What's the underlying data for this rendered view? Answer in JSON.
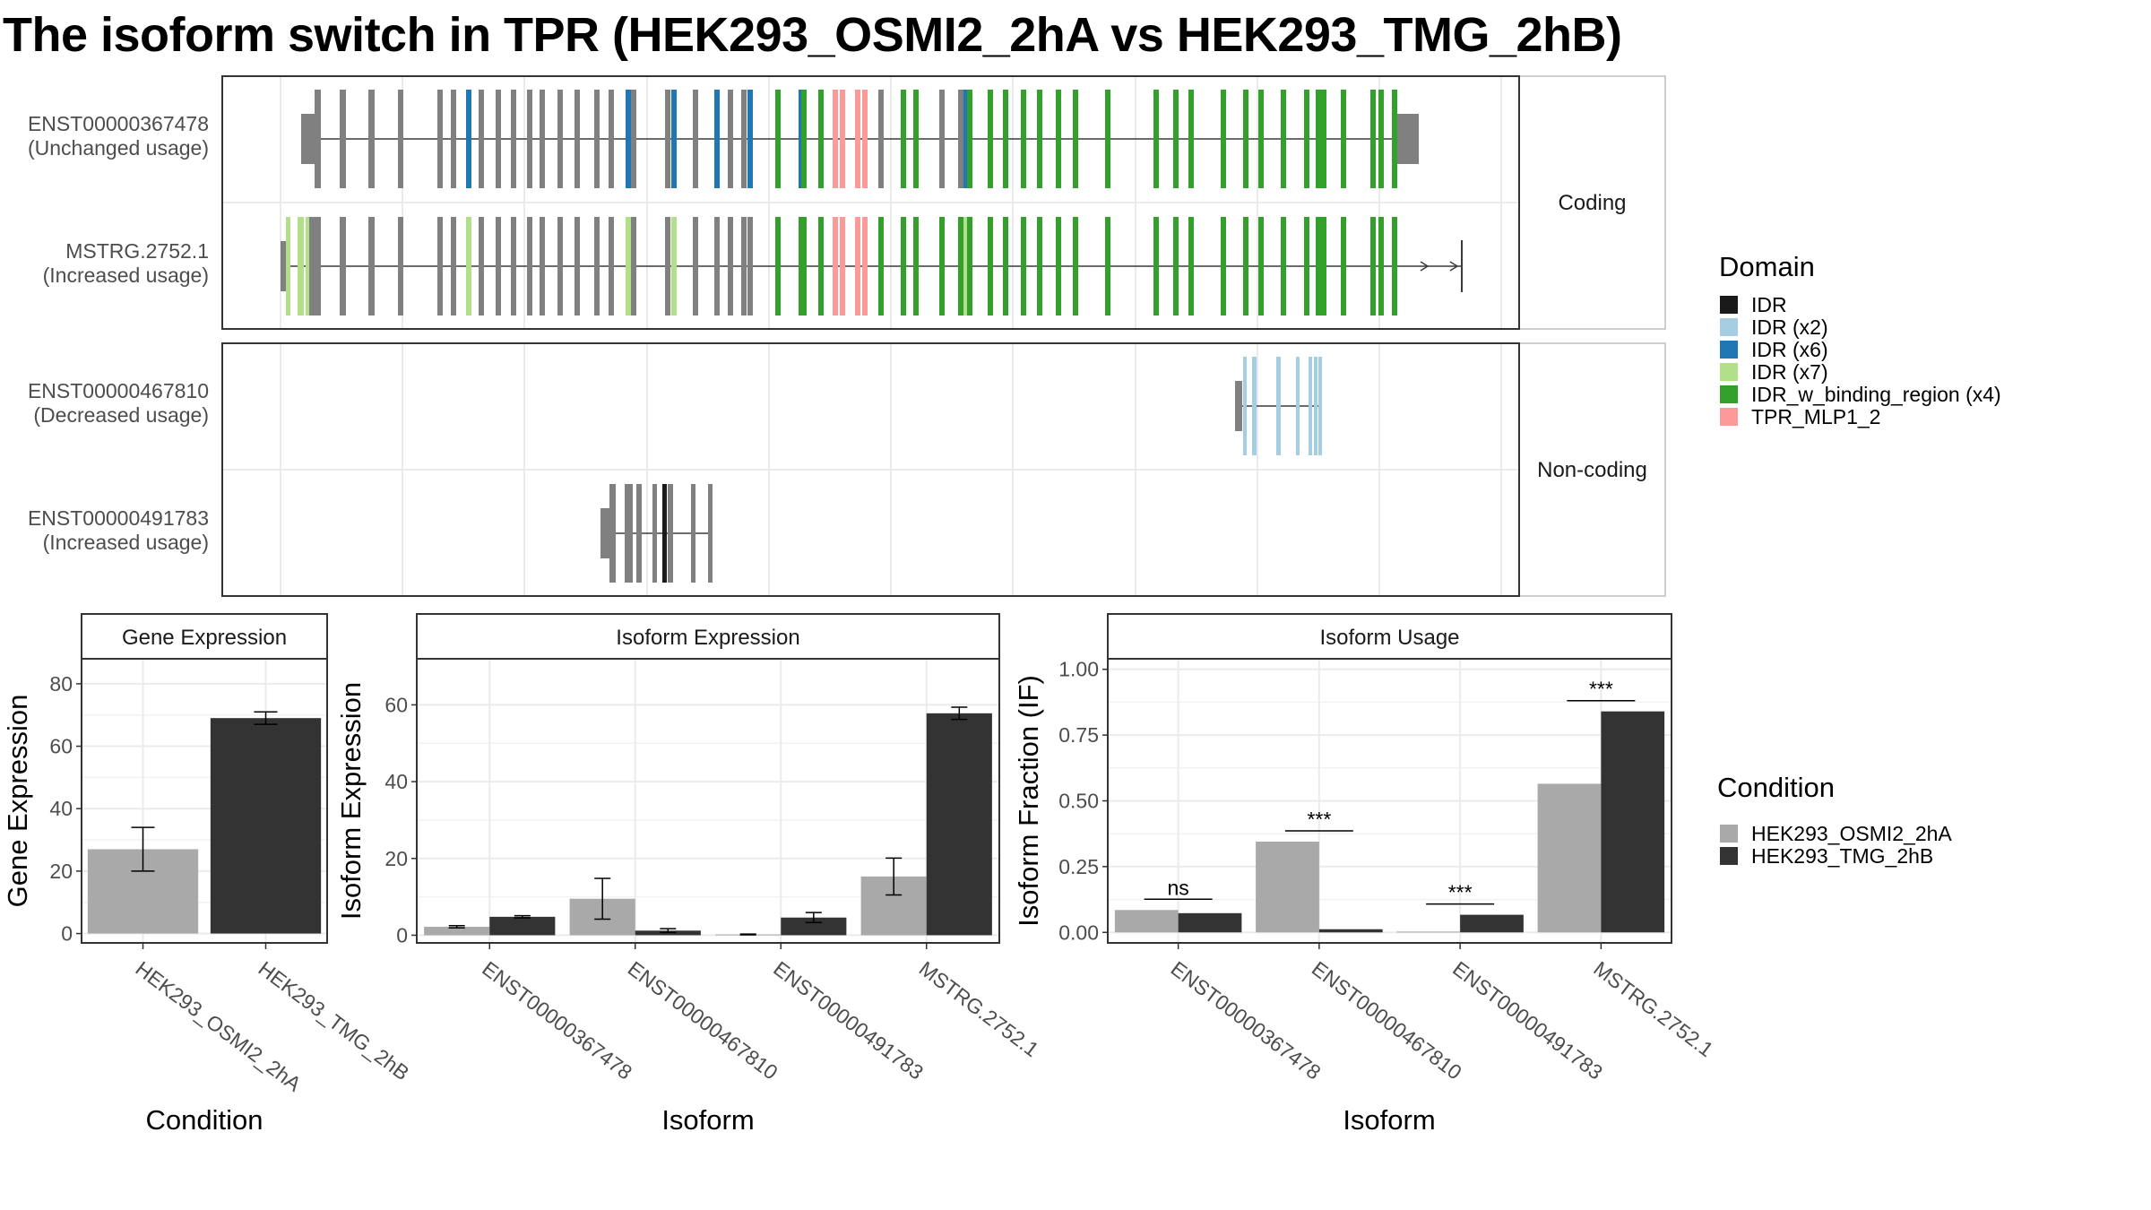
{
  "title": "The isoform switch in TPR (HEK293_OSMI2_2hA vs HEK293_TMG_2hB)",
  "colors": {
    "IDR": "#1a1a1a",
    "IDR (x2)": "#a6cee3",
    "IDR (x6)": "#1f78b4",
    "IDR (x7)": "#b2df8a",
    "IDR_w_binding_region (x4)": "#33a02c",
    "TPR_MLP1_2": "#fb9a99",
    "exon_gray": "#808080",
    "cond_a": "#a9a9a9",
    "cond_b": "#333333"
  },
  "transcript_panels": [
    {
      "strip": "Coding",
      "transcripts": [
        {
          "id": "ENST00000367478",
          "usage": "(Unchanged usage)"
        },
        {
          "id": "MSTRG.2752.1",
          "usage": "(Increased usage)"
        }
      ]
    },
    {
      "strip": "Non-coding",
      "transcripts": [
        {
          "id": "ENST00000467810",
          "usage": "(Decreased usage)"
        },
        {
          "id": "ENST00000491783",
          "usage": "(Increased usage)"
        }
      ]
    }
  ],
  "domain_legend": {
    "title": "Domain",
    "items": [
      "IDR",
      "IDR (x2)",
      "IDR (x6)",
      "IDR (x7)",
      "IDR_w_binding_region (x4)",
      "TPR_MLP1_2"
    ]
  },
  "condition_legend": {
    "title": "Condition",
    "items": [
      "HEK293_OSMI2_2hA",
      "HEK293_TMG_2hB"
    ]
  },
  "chart_data": [
    {
      "type": "bar",
      "strip": "Gene Expression",
      "xlabel": "Condition",
      "ylabel": "Gene Expression",
      "ylim": [
        -3,
        88
      ],
      "yticks": [
        0,
        20,
        40,
        60,
        80
      ],
      "yticklabels": [
        "0",
        "20",
        "40",
        "60",
        "80"
      ],
      "categories": [
        "HEK293_OSMI2_2hA",
        "HEK293_TMG_2hB"
      ],
      "series": [
        {
          "name": "HEK293_OSMI2_2hA",
          "values": [
            27,
            null
          ],
          "err_low": [
            20,
            null
          ],
          "err_high": [
            34,
            null
          ]
        },
        {
          "name": "HEK293_TMG_2hB",
          "values": [
            null,
            69
          ],
          "err_low": [
            null,
            67
          ],
          "err_high": [
            null,
            71
          ]
        }
      ]
    },
    {
      "type": "bar",
      "strip": "Isoform Expression",
      "xlabel": "Isoform",
      "ylabel": "Isoform Expression",
      "ylim": [
        -2,
        72
      ],
      "yticks": [
        0,
        20,
        40,
        60
      ],
      "yticklabels": [
        "0",
        "20",
        "40",
        "60"
      ],
      "categories": [
        "ENST00000367478",
        "ENST00000467810",
        "ENST00000491783",
        "MSTRG.2752.1"
      ],
      "series": [
        {
          "name": "HEK293_OSMI2_2hA",
          "values": [
            2.2,
            9.5,
            0.2,
            15.3
          ],
          "err_low": [
            1.9,
            4.2,
            0.1,
            10.5
          ],
          "err_high": [
            2.5,
            14.8,
            0.3,
            20.1
          ]
        },
        {
          "name": "HEK293_TMG_2hB",
          "values": [
            4.8,
            1.2,
            4.6,
            57.8
          ],
          "err_low": [
            4.5,
            0.7,
            3.3,
            56.2
          ],
          "err_high": [
            5.1,
            1.7,
            5.9,
            59.4
          ]
        }
      ]
    },
    {
      "type": "bar",
      "strip": "Isoform Usage",
      "xlabel": "Isoform",
      "ylabel": "Isoform Fraction (IF)",
      "ylim": [
        -0.04,
        1.04
      ],
      "yticks": [
        0,
        0.25,
        0.5,
        0.75,
        1.0
      ],
      "yticklabels": [
        "0.00",
        "0.25",
        "0.50",
        "0.75",
        "1.00"
      ],
      "categories": [
        "ENST00000367478",
        "ENST00000467810",
        "ENST00000491783",
        "MSTRG.2752.1"
      ],
      "series": [
        {
          "name": "HEK293_OSMI2_2hA",
          "values": [
            0.085,
            0.345,
            0.003,
            0.565
          ]
        },
        {
          "name": "HEK293_TMG_2hB",
          "values": [
            0.073,
            0.012,
            0.067,
            0.84
          ]
        }
      ],
      "significance": [
        "ns",
        "***",
        "***",
        "***"
      ]
    }
  ]
}
